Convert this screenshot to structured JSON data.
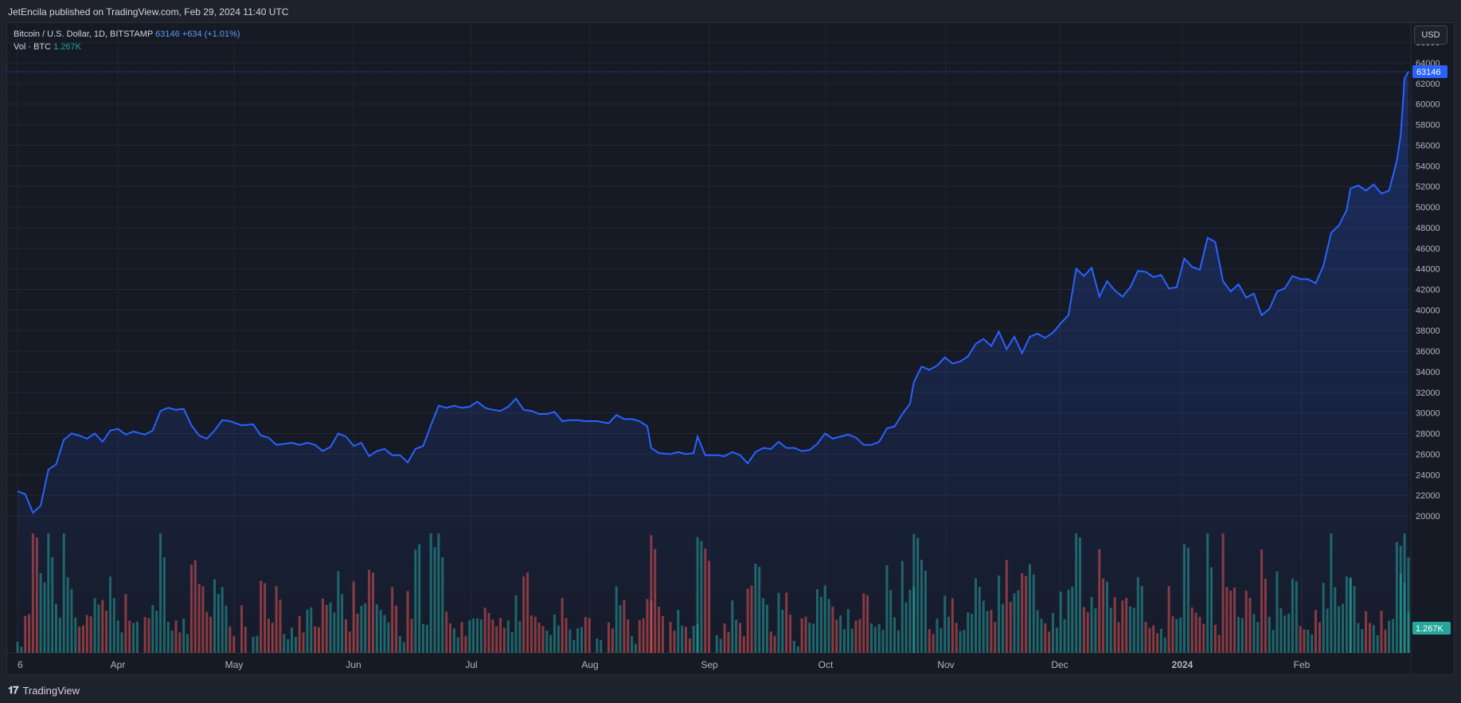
{
  "header": {
    "published_text": "JetEncila published on TradingView.com, Feb 29, 2024 11:40 UTC"
  },
  "legend": {
    "symbol": "Bitcoin / U.S. Dollar, 1D, BITSTAMP",
    "last": "63146",
    "change": "+634 (+1.01%)",
    "vol_label": "Vol · BTC",
    "vol_value": "1.267K"
  },
  "currency_button": "USD",
  "price_tag": "63146",
  "volume_tag": "1.267K",
  "footer": {
    "logo": "TradingView"
  },
  "colors": {
    "line": "#2962ff",
    "up": "#26a69a",
    "down": "#ef5350",
    "bg": "#161a25",
    "grid": "#232734"
  },
  "chart_data": {
    "type": "area",
    "symbol": "BTCUSD",
    "exchange": "BITSTAMP",
    "interval": "1D",
    "ylim": [
      19000,
      66500
    ],
    "y_ticks": [
      20000,
      22000,
      24000,
      26000,
      28000,
      30000,
      32000,
      34000,
      36000,
      38000,
      40000,
      42000,
      44000,
      46000,
      48000,
      50000,
      52000,
      54000,
      56000,
      58000,
      60000,
      62000,
      64000,
      66000
    ],
    "x_ticks": [
      "6",
      "Apr",
      "May",
      "Jun",
      "Jul",
      "Aug",
      "Sep",
      "Oct",
      "Nov",
      "Dec",
      "2024",
      "Feb"
    ],
    "grid": true,
    "price_points": [
      [
        "2023-03-06",
        22400
      ],
      [
        "2023-03-08",
        22100
      ],
      [
        "2023-03-10",
        20300
      ],
      [
        "2023-03-12",
        21000
      ],
      [
        "2023-03-14",
        24500
      ],
      [
        "2023-03-16",
        25000
      ],
      [
        "2023-03-18",
        27400
      ],
      [
        "2023-03-20",
        28000
      ],
      [
        "2023-03-22",
        27800
      ],
      [
        "2023-03-24",
        27500
      ],
      [
        "2023-03-26",
        28000
      ],
      [
        "2023-03-28",
        27200
      ],
      [
        "2023-03-30",
        28300
      ],
      [
        "2023-04-01",
        28450
      ],
      [
        "2023-04-03",
        27900
      ],
      [
        "2023-04-05",
        28200
      ],
      [
        "2023-04-08",
        27900
      ],
      [
        "2023-04-10",
        28300
      ],
      [
        "2023-04-12",
        30200
      ],
      [
        "2023-04-14",
        30500
      ],
      [
        "2023-04-16",
        30300
      ],
      [
        "2023-04-18",
        30400
      ],
      [
        "2023-04-20",
        28800
      ],
      [
        "2023-04-22",
        27800
      ],
      [
        "2023-04-24",
        27500
      ],
      [
        "2023-04-26",
        28300
      ],
      [
        "2023-04-28",
        29300
      ],
      [
        "2023-04-30",
        29200
      ],
      [
        "2023-05-03",
        28800
      ],
      [
        "2023-05-06",
        28900
      ],
      [
        "2023-05-08",
        27800
      ],
      [
        "2023-05-10",
        27600
      ],
      [
        "2023-05-12",
        26900
      ],
      [
        "2023-05-14",
        27000
      ],
      [
        "2023-05-16",
        27100
      ],
      [
        "2023-05-18",
        26900
      ],
      [
        "2023-05-20",
        27100
      ],
      [
        "2023-05-22",
        26900
      ],
      [
        "2023-05-24",
        26300
      ],
      [
        "2023-05-26",
        26700
      ],
      [
        "2023-05-28",
        28000
      ],
      [
        "2023-05-30",
        27700
      ],
      [
        "2023-06-01",
        26800
      ],
      [
        "2023-06-03",
        27100
      ],
      [
        "2023-06-05",
        25800
      ],
      [
        "2023-06-07",
        26300
      ],
      [
        "2023-06-09",
        26500
      ],
      [
        "2023-06-11",
        25900
      ],
      [
        "2023-06-13",
        25900
      ],
      [
        "2023-06-15",
        25200
      ],
      [
        "2023-06-17",
        26500
      ],
      [
        "2023-06-19",
        26800
      ],
      [
        "2023-06-21",
        28800
      ],
      [
        "2023-06-23",
        30700
      ],
      [
        "2023-06-25",
        30500
      ],
      [
        "2023-06-27",
        30700
      ],
      [
        "2023-06-29",
        30500
      ],
      [
        "2023-07-01",
        30600
      ],
      [
        "2023-07-03",
        31100
      ],
      [
        "2023-07-05",
        30500
      ],
      [
        "2023-07-07",
        30300
      ],
      [
        "2023-07-09",
        30200
      ],
      [
        "2023-07-11",
        30600
      ],
      [
        "2023-07-13",
        31400
      ],
      [
        "2023-07-15",
        30300
      ],
      [
        "2023-07-17",
        30200
      ],
      [
        "2023-07-19",
        29900
      ],
      [
        "2023-07-21",
        29900
      ],
      [
        "2023-07-23",
        30100
      ],
      [
        "2023-07-25",
        29200
      ],
      [
        "2023-07-27",
        29300
      ],
      [
        "2023-07-29",
        29300
      ],
      [
        "2023-07-31",
        29200
      ],
      [
        "2023-08-03",
        29200
      ],
      [
        "2023-08-06",
        29000
      ],
      [
        "2023-08-08",
        29800
      ],
      [
        "2023-08-10",
        29400
      ],
      [
        "2023-08-12",
        29400
      ],
      [
        "2023-08-14",
        29200
      ],
      [
        "2023-08-16",
        28700
      ],
      [
        "2023-08-17",
        26600
      ],
      [
        "2023-08-19",
        26100
      ],
      [
        "2023-08-22",
        26000
      ],
      [
        "2023-08-24",
        26200
      ],
      [
        "2023-08-26",
        26000
      ],
      [
        "2023-08-28",
        26100
      ],
      [
        "2023-08-29",
        27700
      ],
      [
        "2023-08-31",
        25900
      ],
      [
        "2023-09-03",
        25900
      ],
      [
        "2023-09-05",
        25800
      ],
      [
        "2023-09-07",
        26200
      ],
      [
        "2023-09-09",
        25900
      ],
      [
        "2023-09-11",
        25100
      ],
      [
        "2023-09-13",
        26200
      ],
      [
        "2023-09-15",
        26600
      ],
      [
        "2023-09-17",
        26500
      ],
      [
        "2023-09-19",
        27200
      ],
      [
        "2023-09-21",
        26600
      ],
      [
        "2023-09-23",
        26600
      ],
      [
        "2023-09-25",
        26300
      ],
      [
        "2023-09-27",
        26400
      ],
      [
        "2023-09-29",
        27000
      ],
      [
        "2023-10-01",
        28000
      ],
      [
        "2023-10-03",
        27500
      ],
      [
        "2023-10-05",
        27700
      ],
      [
        "2023-10-07",
        27900
      ],
      [
        "2023-10-09",
        27600
      ],
      [
        "2023-10-11",
        26900
      ],
      [
        "2023-10-13",
        26900
      ],
      [
        "2023-10-15",
        27200
      ],
      [
        "2023-10-17",
        28500
      ],
      [
        "2023-10-19",
        28700
      ],
      [
        "2023-10-21",
        29900
      ],
      [
        "2023-10-23",
        30900
      ],
      [
        "2023-10-24",
        33000
      ],
      [
        "2023-10-26",
        34500
      ],
      [
        "2023-10-28",
        34200
      ],
      [
        "2023-10-30",
        34600
      ],
      [
        "2023-11-01",
        35400
      ],
      [
        "2023-11-03",
        34800
      ],
      [
        "2023-11-05",
        35000
      ],
      [
        "2023-11-07",
        35500
      ],
      [
        "2023-11-09",
        36700
      ],
      [
        "2023-11-11",
        37200
      ],
      [
        "2023-11-13",
        36500
      ],
      [
        "2023-11-15",
        37900
      ],
      [
        "2023-11-17",
        36200
      ],
      [
        "2023-11-19",
        37400
      ],
      [
        "2023-11-21",
        35800
      ],
      [
        "2023-11-23",
        37400
      ],
      [
        "2023-11-25",
        37700
      ],
      [
        "2023-11-27",
        37300
      ],
      [
        "2023-11-29",
        37800
      ],
      [
        "2023-12-01",
        38700
      ],
      [
        "2023-12-03",
        39500
      ],
      [
        "2023-12-05",
        44000
      ],
      [
        "2023-12-07",
        43300
      ],
      [
        "2023-12-09",
        44100
      ],
      [
        "2023-12-11",
        41300
      ],
      [
        "2023-12-13",
        42800
      ],
      [
        "2023-12-15",
        41900
      ],
      [
        "2023-12-17",
        41300
      ],
      [
        "2023-12-19",
        42200
      ],
      [
        "2023-12-21",
        43800
      ],
      [
        "2023-12-23",
        43700
      ],
      [
        "2023-12-25",
        43200
      ],
      [
        "2023-12-27",
        43400
      ],
      [
        "2023-12-29",
        42100
      ],
      [
        "2023-12-31",
        42200
      ],
      [
        "2024-01-02",
        45000
      ],
      [
        "2024-01-04",
        44200
      ],
      [
        "2024-01-06",
        43900
      ],
      [
        "2024-01-08",
        47000
      ],
      [
        "2024-01-10",
        46600
      ],
      [
        "2024-01-12",
        42800
      ],
      [
        "2024-01-14",
        41800
      ],
      [
        "2024-01-16",
        42500
      ],
      [
        "2024-01-18",
        41200
      ],
      [
        "2024-01-20",
        41600
      ],
      [
        "2024-01-22",
        39500
      ],
      [
        "2024-01-24",
        40100
      ],
      [
        "2024-01-26",
        41800
      ],
      [
        "2024-01-28",
        42100
      ],
      [
        "2024-01-30",
        43300
      ],
      [
        "2024-02-01",
        43000
      ],
      [
        "2024-02-03",
        43000
      ],
      [
        "2024-02-05",
        42600
      ],
      [
        "2024-02-07",
        44300
      ],
      [
        "2024-02-09",
        47500
      ],
      [
        "2024-02-11",
        48200
      ],
      [
        "2024-02-13",
        49700
      ],
      [
        "2024-02-14",
        51800
      ],
      [
        "2024-02-16",
        52100
      ],
      [
        "2024-02-18",
        51600
      ],
      [
        "2024-02-20",
        52200
      ],
      [
        "2024-02-22",
        51300
      ],
      [
        "2024-02-24",
        51600
      ],
      [
        "2024-02-26",
        54500
      ],
      [
        "2024-02-27",
        57000
      ],
      [
        "2024-02-28",
        62500
      ],
      [
        "2024-02-29",
        63146
      ]
    ],
    "last_price": 63146,
    "volume": {
      "unit": "BTC",
      "last": "1.267K"
    }
  }
}
